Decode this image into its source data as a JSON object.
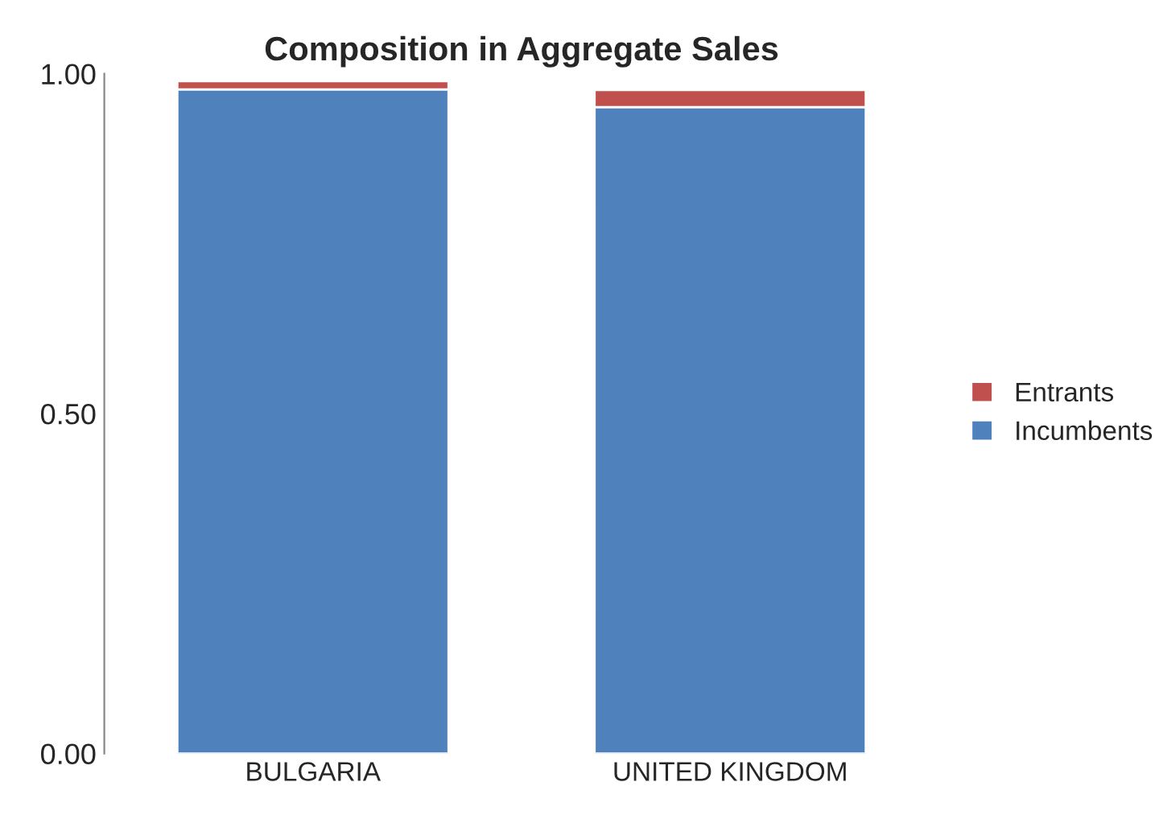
{
  "chart_data": {
    "type": "bar",
    "title": "Composition in Aggregate Sales",
    "categories": [
      "BULGARIA",
      "UNITED KINGDOM"
    ],
    "stacked": true,
    "series": [
      {
        "name": "Incumbents",
        "color": "#4f81bd",
        "values": [
          0.977,
          0.951
        ]
      },
      {
        "name": "Entrants",
        "color": "#c0504d",
        "values": [
          0.012,
          0.025
        ]
      }
    ],
    "ylim": [
      0,
      1
    ],
    "yticks": [
      {
        "value": 0,
        "label": "0.00"
      },
      {
        "value": 0.5,
        "label": "0.50"
      },
      {
        "value": 1,
        "label": "1.00"
      }
    ],
    "grid": false,
    "legend": "right"
  }
}
